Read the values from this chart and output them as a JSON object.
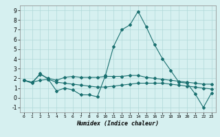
{
  "xlabel": "Humidex (Indice chaleur)",
  "ylabel": "",
  "bg_color": "#d6f0f0",
  "grid_color": "#b0d8d8",
  "line_color": "#1a7070",
  "xlim": [
    -0.5,
    23.5
  ],
  "ylim": [
    -1.5,
    9.5
  ],
  "xticks": [
    0,
    1,
    2,
    3,
    4,
    5,
    6,
    7,
    8,
    9,
    10,
    11,
    12,
    13,
    14,
    15,
    16,
    17,
    18,
    19,
    20,
    21,
    22,
    23
  ],
  "yticks": [
    -1,
    0,
    1,
    2,
    3,
    4,
    5,
    6,
    7,
    8,
    9
  ],
  "line1_x": [
    0,
    1,
    2,
    3,
    4,
    5,
    6,
    7,
    8,
    9,
    10,
    11,
    12,
    13,
    14,
    15,
    16,
    17,
    18,
    19,
    20,
    21,
    22,
    23
  ],
  "line1_y": [
    1.8,
    1.5,
    2.5,
    1.9,
    0.7,
    1.0,
    0.8,
    0.3,
    0.3,
    0.1,
    2.3,
    5.3,
    7.0,
    7.5,
    8.9,
    7.3,
    5.5,
    4.0,
    2.8,
    1.6,
    1.5,
    0.4,
    -1.0,
    0.5
  ],
  "line2_x": [
    0,
    1,
    2,
    3,
    4,
    5,
    6,
    7,
    8,
    9,
    10,
    11,
    12,
    13,
    14,
    15,
    16,
    17,
    18,
    19,
    20,
    21,
    22,
    23
  ],
  "line2_y": [
    1.8,
    1.6,
    2.4,
    2.0,
    1.8,
    2.1,
    2.2,
    2.1,
    2.1,
    2.1,
    2.2,
    2.2,
    2.2,
    2.3,
    2.3,
    2.1,
    2.0,
    1.9,
    1.8,
    1.7,
    1.6,
    1.5,
    1.4,
    1.4
  ],
  "line3_x": [
    0,
    1,
    2,
    3,
    4,
    5,
    6,
    7,
    8,
    9,
    10,
    11,
    12,
    13,
    14,
    15,
    16,
    17,
    18,
    19,
    20,
    21,
    22,
    23
  ],
  "line3_y": [
    1.8,
    1.6,
    1.8,
    1.9,
    1.6,
    1.5,
    1.4,
    1.3,
    1.2,
    1.1,
    1.1,
    1.2,
    1.3,
    1.4,
    1.5,
    1.5,
    1.5,
    1.5,
    1.4,
    1.3,
    1.2,
    1.1,
    1.0,
    0.9
  ]
}
